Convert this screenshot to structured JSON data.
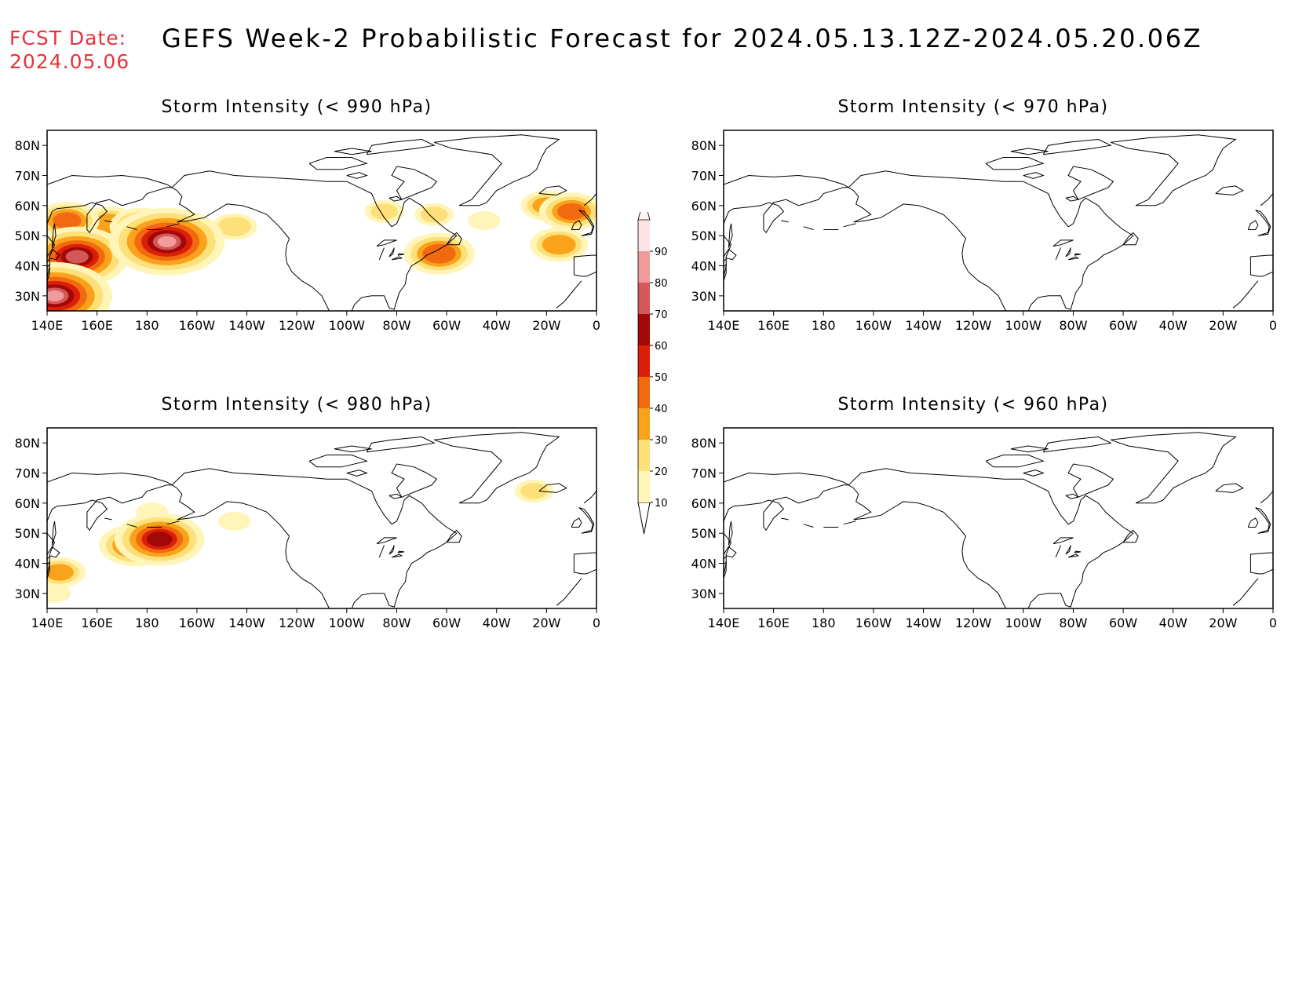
{
  "header": {
    "fcst_label": "FCST Date:",
    "fcst_date": "2024.05.06",
    "title": "GEFS Week-2 Probabilistic Forecast for 2024.05.13.12Z-2024.05.20.06Z"
  },
  "axes": {
    "lat_labels": [
      "80N",
      "70N",
      "60N",
      "50N",
      "40N",
      "30N"
    ],
    "lat_values": [
      80,
      70,
      60,
      50,
      40,
      30
    ],
    "lon_labels": [
      "140E",
      "160E",
      "180",
      "160W",
      "140W",
      "120W",
      "100W",
      "80W",
      "60W",
      "40W",
      "20W",
      "0"
    ],
    "lon_values": [
      140,
      160,
      180,
      200,
      220,
      240,
      260,
      280,
      300,
      320,
      340,
      360
    ],
    "lon_range": [
      140,
      360
    ],
    "lat_range": [
      25,
      85
    ]
  },
  "panels": [
    {
      "title": "Storm Intensity (< 990 hPa)"
    },
    {
      "title": "Storm Intensity (< 970 hPa)"
    },
    {
      "title": "Storm Intensity (< 980 hPa)"
    },
    {
      "title": "Storm Intensity (< 960 hPa)"
    }
  ],
  "colorbar": {
    "levels": [
      "10",
      "20",
      "30",
      "40",
      "50",
      "60",
      "70",
      "80",
      "90"
    ],
    "colors": [
      "#fff5b8",
      "#fde07a",
      "#f9a21a",
      "#f26a10",
      "#dc2008",
      "#a30808",
      "#d45858",
      "#ef9b9b",
      "#fde3e3"
    ],
    "low_color": "#ffffff"
  },
  "chart_data": [
    {
      "type": "heatmap",
      "title": "Storm Intensity (< 990 hPa)",
      "x_unit": "degrees longitude east",
      "y_unit": "degrees latitude",
      "blobs": [
        {
          "lon": 148,
          "lat": 55,
          "value": 40
        },
        {
          "lon": 145,
          "lat": 38,
          "value": 60
        },
        {
          "lon": 152,
          "lat": 43,
          "value": 70
        },
        {
          "lon": 143,
          "lat": 30,
          "value": 80
        },
        {
          "lon": 165,
          "lat": 54,
          "value": 35
        },
        {
          "lon": 178,
          "lat": 53,
          "value": 40
        },
        {
          "lon": 188,
          "lat": 48,
          "value": 80
        },
        {
          "lon": 200,
          "lat": 51,
          "value": 25
        },
        {
          "lon": 215,
          "lat": 53,
          "value": 25
        },
        {
          "lon": 275,
          "lat": 58,
          "value": 20
        },
        {
          "lon": 295,
          "lat": 57,
          "value": 20
        },
        {
          "lon": 315,
          "lat": 55,
          "value": 15
        },
        {
          "lon": 340,
          "lat": 60,
          "value": 30
        },
        {
          "lon": 350,
          "lat": 58,
          "value": 40
        },
        {
          "lon": 297,
          "lat": 44,
          "value": 45
        },
        {
          "lon": 345,
          "lat": 47,
          "value": 35
        }
      ]
    },
    {
      "type": "heatmap",
      "title": "Storm Intensity (< 970 hPa)",
      "blobs": []
    },
    {
      "type": "heatmap",
      "title": "Storm Intensity (< 980 hPa)",
      "blobs": [
        {
          "lon": 145,
          "lat": 37,
          "value": 30
        },
        {
          "lon": 143,
          "lat": 30,
          "value": 15
        },
        {
          "lon": 185,
          "lat": 48,
          "value": 60
        },
        {
          "lon": 175,
          "lat": 46,
          "value": 45
        },
        {
          "lon": 182,
          "lat": 57,
          "value": 15
        },
        {
          "lon": 215,
          "lat": 54,
          "value": 15
        },
        {
          "lon": 335,
          "lat": 64,
          "value": 20
        }
      ]
    },
    {
      "type": "heatmap",
      "title": "Storm Intensity (< 960 hPa)",
      "blobs": []
    }
  ]
}
